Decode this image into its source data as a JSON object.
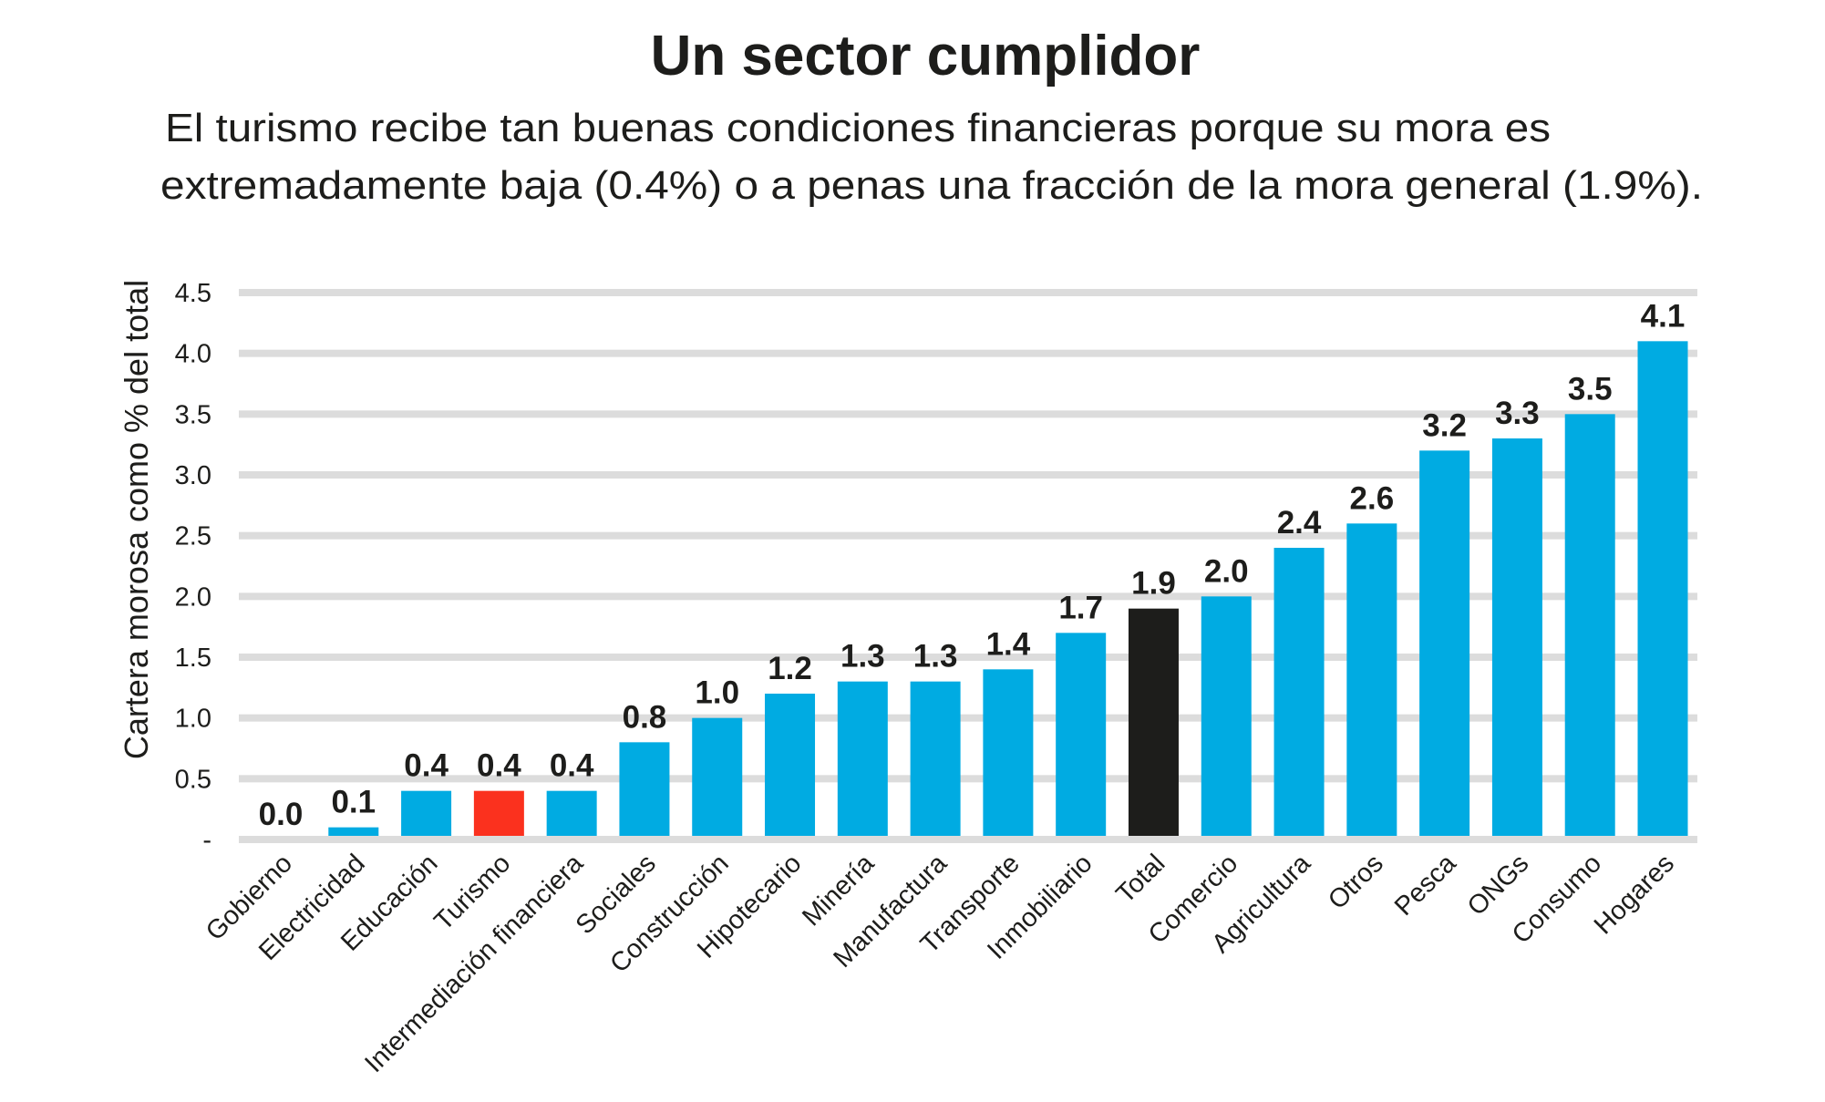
{
  "chart_data": {
    "type": "bar",
    "title": "Un sector cumplidor",
    "subtitle": [
      "El turismo recibe tan buenas condiciones financieras porque su mora es",
      "extremadamente baja (0.4%) o a penas una fracción de la mora general  (1.9%)."
    ],
    "xlabel": "",
    "ylabel": "Cartera morosa como % del total",
    "ylim": [
      0,
      4.5
    ],
    "yticks": [
      0,
      0.5,
      1.0,
      1.5,
      2.0,
      2.5,
      3.0,
      3.5,
      4.0,
      4.5
    ],
    "ytick_labels": [
      "-",
      "0.5",
      "1.0",
      "1.5",
      "2.0",
      "2.5",
      "3.0",
      "3.5",
      "4.0",
      "4.5"
    ],
    "grid": true,
    "categories": [
      "Gobierno",
      "Electricidad",
      "Educación",
      "Turismo",
      "Intermediación financiera",
      "Sociales",
      "Construcción",
      "Hipotecario",
      "Minería",
      "Manufactura",
      "Transporte",
      "Inmobiliario",
      "Total",
      "Comercio",
      "Agricultura",
      "Otros",
      "Pesca",
      "ONGs",
      "Consumo",
      "Hogares"
    ],
    "values": [
      0.0,
      0.1,
      0.4,
      0.4,
      0.4,
      0.8,
      1.0,
      1.2,
      1.3,
      1.3,
      1.4,
      1.7,
      1.9,
      2.0,
      2.4,
      2.6,
      3.2,
      3.3,
      3.5,
      4.1
    ],
    "data_labels": [
      "0.0",
      "0.1",
      "0.4",
      "0.4",
      "0.4",
      "0.8",
      "1.0",
      "1.2",
      "1.3",
      "1.3",
      "1.4",
      "1.7",
      "1.9",
      "2.0",
      "2.4",
      "2.6",
      "3.2",
      "3.3",
      "3.5",
      "4.1"
    ],
    "colors": {
      "default": "#00abe2",
      "Turismo": "#fb311e",
      "Total": "#1d1d1b",
      "grid": "#dcdcdc",
      "text": "#1d1d1b"
    }
  }
}
